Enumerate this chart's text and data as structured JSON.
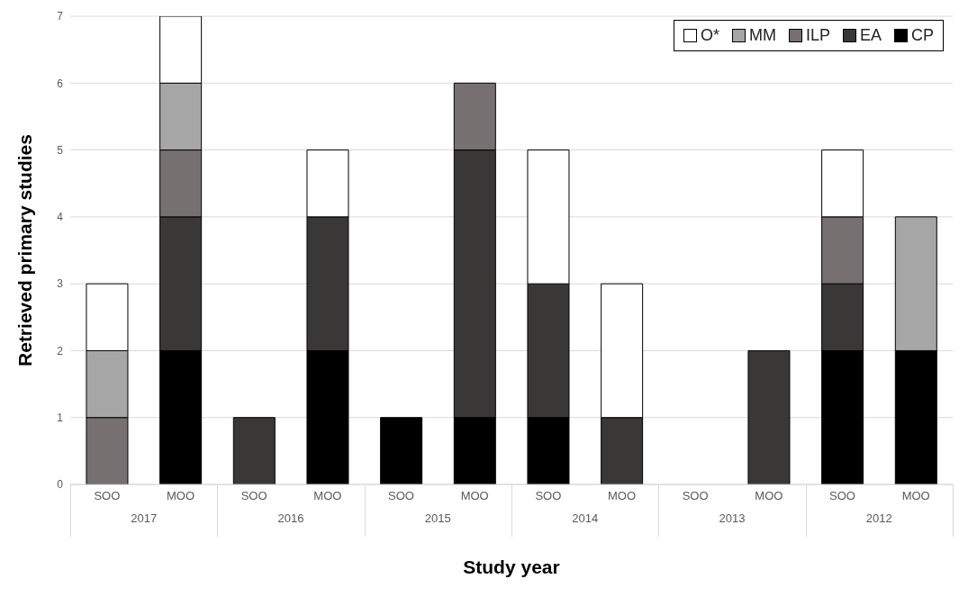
{
  "chart_data": {
    "type": "bar",
    "stacked": true,
    "xlabel": "Study year",
    "ylabel": "Retrieved primary studies",
    "categories": [
      "SOO",
      "MOO",
      "SOO",
      "MOO",
      "SOO",
      "MOO",
      "SOO",
      "MOO",
      "SOO",
      "MOO",
      "SOO",
      "MOO"
    ],
    "annotations": [
      "2017",
      "2016",
      "2015",
      "2014",
      "2013",
      "2012"
    ],
    "series": [
      {
        "name": "CP",
        "color": "#000000",
        "values": [
          null,
          2,
          null,
          2,
          1,
          1,
          1,
          null,
          null,
          null,
          2,
          2
        ]
      },
      {
        "name": "EA",
        "color": "#3a3836",
        "values": [
          null,
          2,
          1,
          2,
          null,
          4,
          2,
          1,
          null,
          2,
          1,
          null
        ]
      },
      {
        "name": "ILP",
        "color": "#767170",
        "values": [
          1,
          1,
          null,
          null,
          null,
          1,
          null,
          null,
          null,
          null,
          1,
          null
        ]
      },
      {
        "name": "MM",
        "color": "#a6a6a6",
        "values": [
          1,
          1,
          null,
          null,
          null,
          null,
          null,
          null,
          null,
          null,
          null,
          2
        ]
      },
      {
        "name": "O*",
        "color": "#ffffff",
        "values": [
          1,
          1,
          null,
          1,
          null,
          null,
          2,
          2,
          null,
          null,
          1,
          null
        ]
      }
    ],
    "ylim": [
      0,
      7
    ],
    "yticks": [
      0,
      1,
      2,
      3,
      4,
      5,
      6,
      7
    ],
    "grid": "y",
    "legend": "top right"
  }
}
